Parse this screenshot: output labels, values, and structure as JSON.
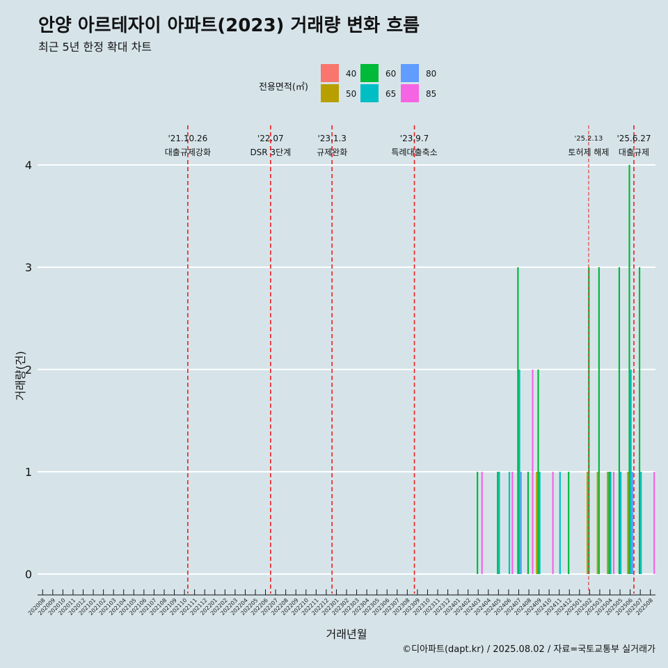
{
  "title": "안양 아르테자이 아파트(2023) 거래량 변화 흐름",
  "subtitle": "최근 5년 한정 확대 차트",
  "caption": "©디아파트(dapt.kr) / 2025.08.02 / 자료=국토교통부 실거래가",
  "colors": {
    "background": "#d6e4ea",
    "grid": "#ffffff",
    "event_line": "#e8201c",
    "area_40": "#f8766d",
    "area_50": "#b79f00",
    "area_60": "#00ba38",
    "area_65": "#00bfc4",
    "area_80": "#619cff",
    "area_85": "#f564e3"
  },
  "chart_data": {
    "type": "bar",
    "title": "안양 아르테자이 아파트(2023) 거래량 변화 흐름",
    "subtitle": "최근 5년 한정 확대 차트",
    "xlabel": "거래년월",
    "ylabel": "거래량(건)",
    "ylim": [
      0,
      4
    ],
    "yticks": [
      0,
      1,
      2,
      3,
      4
    ],
    "grid": true,
    "legend": {
      "title": "전용면적(㎡)",
      "placement": "top",
      "items": [
        "40",
        "50",
        "60",
        "65",
        "80",
        "85"
      ]
    },
    "categories": [
      "202008",
      "202009",
      "202010",
      "202011",
      "202012",
      "202101",
      "202102",
      "202103",
      "202104",
      "202105",
      "202106",
      "202107",
      "202108",
      "202109",
      "202110",
      "202111",
      "202112",
      "202201",
      "202202",
      "202203",
      "202204",
      "202205",
      "202206",
      "202207",
      "202208",
      "202209",
      "202210",
      "202211",
      "202212",
      "202301",
      "202302",
      "202303",
      "202304",
      "202305",
      "202306",
      "202307",
      "202308",
      "202309",
      "202310",
      "202311",
      "202312",
      "202401",
      "202402",
      "202403",
      "202404",
      "202405",
      "202406",
      "202407",
      "202408",
      "202409",
      "202410",
      "202411",
      "202412",
      "202501",
      "202502",
      "202503",
      "202504",
      "202505",
      "202506",
      "202507",
      "202508"
    ],
    "series": [
      {
        "name": "40",
        "values": [
          0,
          0,
          0,
          0,
          0,
          0,
          0,
          0,
          0,
          0,
          0,
          0,
          0,
          0,
          0,
          0,
          0,
          0,
          0,
          0,
          0,
          0,
          0,
          0,
          0,
          0,
          0,
          0,
          0,
          0,
          0,
          0,
          0,
          0,
          0,
          0,
          0,
          0,
          0,
          0,
          0,
          0,
          0,
          0,
          0,
          0,
          0,
          0,
          0,
          0,
          0,
          0,
          0,
          0,
          0,
          0,
          0,
          0,
          0,
          0,
          0
        ]
      },
      {
        "name": "50",
        "values": [
          0,
          0,
          0,
          0,
          0,
          0,
          0,
          0,
          0,
          0,
          0,
          0,
          0,
          0,
          0,
          0,
          0,
          0,
          0,
          0,
          0,
          0,
          0,
          0,
          0,
          0,
          0,
          0,
          0,
          0,
          0,
          0,
          0,
          0,
          0,
          0,
          0,
          0,
          0,
          0,
          0,
          0,
          0,
          0,
          0,
          0,
          0,
          0,
          0,
          1,
          0,
          0,
          0,
          0,
          1,
          1,
          1,
          0,
          1,
          0,
          0
        ]
      },
      {
        "name": "60",
        "values": [
          0,
          0,
          0,
          0,
          0,
          0,
          0,
          0,
          0,
          0,
          0,
          0,
          0,
          0,
          0,
          0,
          0,
          0,
          0,
          0,
          0,
          0,
          0,
          0,
          0,
          0,
          0,
          0,
          0,
          0,
          0,
          0,
          0,
          0,
          0,
          0,
          0,
          0,
          0,
          0,
          0,
          0,
          0,
          1,
          0,
          1,
          0,
          3,
          1,
          2,
          0,
          0,
          1,
          0,
          3,
          3,
          1,
          3,
          4,
          3,
          0
        ]
      },
      {
        "name": "65",
        "values": [
          0,
          0,
          0,
          0,
          0,
          0,
          0,
          0,
          0,
          0,
          0,
          0,
          0,
          0,
          0,
          0,
          0,
          0,
          0,
          0,
          0,
          0,
          0,
          0,
          0,
          0,
          0,
          0,
          0,
          0,
          0,
          0,
          0,
          0,
          0,
          0,
          0,
          0,
          0,
          0,
          0,
          0,
          0,
          0,
          0,
          1,
          1,
          2,
          0,
          1,
          0,
          1,
          0,
          0,
          0,
          0,
          1,
          1,
          2,
          1,
          0
        ]
      },
      {
        "name": "80",
        "values": [
          0,
          0,
          0,
          0,
          0,
          0,
          0,
          0,
          0,
          0,
          0,
          0,
          0,
          0,
          0,
          0,
          0,
          0,
          0,
          0,
          0,
          0,
          0,
          0,
          0,
          0,
          0,
          0,
          0,
          0,
          0,
          0,
          0,
          0,
          0,
          0,
          0,
          0,
          0,
          0,
          0,
          0,
          0,
          0,
          0,
          0,
          0,
          1,
          0,
          0,
          0,
          0,
          0,
          0,
          0,
          0,
          0,
          0,
          1,
          0,
          0
        ]
      },
      {
        "name": "85",
        "values": [
          0,
          0,
          0,
          0,
          0,
          0,
          0,
          0,
          0,
          0,
          0,
          0,
          0,
          0,
          0,
          0,
          0,
          0,
          0,
          0,
          0,
          0,
          0,
          0,
          0,
          0,
          0,
          0,
          0,
          0,
          0,
          0,
          0,
          0,
          0,
          0,
          0,
          0,
          0,
          0,
          0,
          0,
          0,
          1,
          0,
          0,
          1,
          0,
          2,
          0,
          1,
          0,
          0,
          0,
          0,
          0,
          1,
          0,
          0,
          0,
          1
        ]
      }
    ],
    "events": [
      {
        "date": "'21.10.26",
        "label": "대출규제강화",
        "month": "202110",
        "offset": 0.83,
        "style": "major"
      },
      {
        "date": "'22.07",
        "label": "DSR 3단계",
        "month": "202207",
        "offset": 0.0,
        "style": "major"
      },
      {
        "date": "'23.1.3",
        "label": "규제완화",
        "month": "202301",
        "offset": 0.07,
        "style": "major"
      },
      {
        "date": "'23.9.7",
        "label": "특례대출축소",
        "month": "202309",
        "offset": 0.2,
        "style": "major"
      },
      {
        "date": "'25.2.13",
        "label": "토허제 해제",
        "month": "202502",
        "offset": 0.4,
        "style": "minor"
      },
      {
        "date": "'25.6.27",
        "label": "대출규제",
        "month": "202506",
        "offset": 0.87,
        "style": "major"
      }
    ]
  }
}
